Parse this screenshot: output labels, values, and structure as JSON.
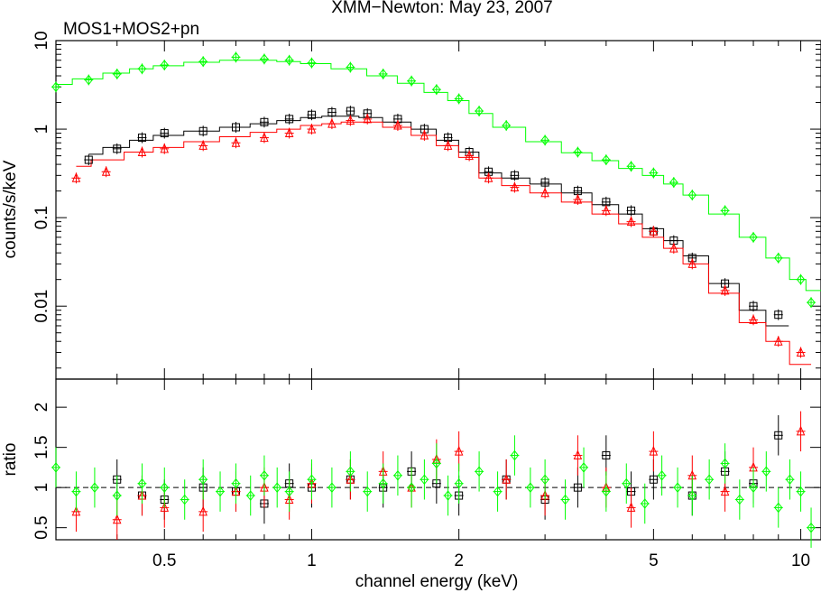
{
  "title": "XMM−Newton: May 23, 2007",
  "subtitle": "MOS1+MOS2+pn",
  "xlabel": "channel energy (keV)",
  "colors": {
    "mos1": "#000000",
    "mos2": "#ff0000",
    "pn": "#00ff00",
    "axes": "#000000"
  },
  "chart_data": [
    {
      "type": "scatter",
      "panel": "spectrum",
      "ylabel": "counts/s/keV",
      "xscale": "log",
      "yscale": "log",
      "xlim": [
        0.3,
        11
      ],
      "ylim": [
        0.0015,
        10
      ],
      "x_ticks": [
        0.5,
        1,
        2,
        5,
        10
      ],
      "x_tick_labels": [
        "0.5",
        "1",
        "2",
        "5",
        "10"
      ],
      "y_ticks": [
        0.01,
        0.1,
        1,
        10
      ],
      "y_tick_labels": [
        "0.01",
        "0.1",
        "1",
        "10"
      ],
      "grid": false,
      "series": [
        {
          "color_key": "mos1",
          "marker": "square",
          "x": [
            0.35,
            0.4,
            0.45,
            0.5,
            0.6,
            0.7,
            0.8,
            0.9,
            1.0,
            1.1,
            1.2,
            1.3,
            1.5,
            1.7,
            1.9,
            2.1,
            2.3,
            2.6,
            3.0,
            3.5,
            4.0,
            4.5,
            5.0,
            5.5,
            6.0,
            7.0,
            8.0,
            9.0
          ],
          "y": [
            0.45,
            0.6,
            0.8,
            0.9,
            0.95,
            1.05,
            1.2,
            1.3,
            1.45,
            1.55,
            1.6,
            1.5,
            1.3,
            1.0,
            0.8,
            0.55,
            0.33,
            0.3,
            0.25,
            0.2,
            0.15,
            0.12,
            0.07,
            0.055,
            0.035,
            0.018,
            0.01,
            0.008
          ],
          "model": [
            0.52,
            0.62,
            0.75,
            0.85,
            0.95,
            1.05,
            1.15,
            1.25,
            1.35,
            1.4,
            1.4,
            1.35,
            1.2,
            1.0,
            0.75,
            0.55,
            0.32,
            0.28,
            0.24,
            0.19,
            0.14,
            0.11,
            0.075,
            0.055,
            0.037,
            0.018,
            0.009,
            0.006
          ]
        },
        {
          "color_key": "mos2",
          "marker": "triangle",
          "x": [
            0.33,
            0.38,
            0.45,
            0.5,
            0.6,
            0.7,
            0.8,
            0.9,
            1.0,
            1.1,
            1.2,
            1.3,
            1.5,
            1.7,
            1.9,
            2.1,
            2.3,
            2.6,
            3.0,
            3.5,
            4.0,
            4.5,
            5.0,
            5.5,
            6.0,
            7.0,
            8.0,
            9.0,
            10.0
          ],
          "y": [
            0.28,
            0.33,
            0.55,
            0.6,
            0.65,
            0.7,
            0.8,
            0.9,
            1.0,
            1.15,
            1.25,
            1.3,
            1.1,
            0.85,
            0.65,
            0.5,
            0.28,
            0.22,
            0.19,
            0.16,
            0.12,
            0.09,
            0.07,
            0.045,
            0.03,
            0.015,
            0.007,
            0.004,
            0.003
          ],
          "model": [
            0.38,
            0.45,
            0.55,
            0.62,
            0.72,
            0.82,
            0.92,
            1.0,
            1.1,
            1.15,
            1.2,
            1.2,
            1.05,
            0.85,
            0.65,
            0.48,
            0.28,
            0.23,
            0.19,
            0.15,
            0.11,
            0.085,
            0.06,
            0.045,
            0.03,
            0.014,
            0.0065,
            0.004,
            0.0022
          ]
        },
        {
          "color_key": "pn",
          "marker": "diamond",
          "x": [
            0.3,
            0.35,
            0.4,
            0.45,
            0.5,
            0.6,
            0.7,
            0.8,
            0.9,
            1.0,
            1.2,
            1.4,
            1.6,
            1.8,
            2.0,
            2.2,
            2.5,
            3.0,
            3.5,
            4.0,
            4.5,
            5.0,
            5.5,
            6.0,
            7.0,
            8.0,
            9.0,
            10.0,
            10.5
          ],
          "y": [
            3.0,
            3.6,
            4.2,
            4.8,
            5.3,
            5.8,
            6.5,
            6.2,
            6.0,
            5.6,
            5.0,
            4.2,
            3.5,
            2.8,
            2.2,
            1.6,
            1.1,
            0.75,
            0.55,
            0.45,
            0.38,
            0.32,
            0.25,
            0.18,
            0.12,
            0.06,
            0.035,
            0.02,
            0.011
          ],
          "model": [
            3.2,
            3.7,
            4.3,
            4.8,
            5.2,
            5.7,
            6.0,
            6.0,
            5.8,
            5.5,
            4.8,
            4.0,
            3.3,
            2.6,
            2.1,
            1.5,
            1.05,
            0.72,
            0.54,
            0.44,
            0.36,
            0.3,
            0.24,
            0.18,
            0.11,
            0.06,
            0.035,
            0.02,
            0.015
          ]
        }
      ]
    },
    {
      "type": "scatter",
      "panel": "ratio",
      "ylabel": "ratio",
      "xscale": "log",
      "xlim": [
        0.3,
        11
      ],
      "ylim": [
        0.35,
        2.35
      ],
      "x_ticks": [
        0.5,
        1,
        2,
        5,
        10
      ],
      "x_tick_labels": [
        "0.5",
        "1",
        "2",
        "5",
        "10"
      ],
      "y_ticks": [
        0.5,
        1,
        1.5,
        2
      ],
      "y_tick_labels": [
        "0.5",
        "1",
        "1.5",
        "2"
      ],
      "reference_line": 1,
      "grid": false,
      "series": [
        {
          "color_key": "mos1",
          "marker": "square",
          "x": [
            0.4,
            0.45,
            0.5,
            0.6,
            0.7,
            0.8,
            0.9,
            1.0,
            1.2,
            1.4,
            1.6,
            1.8,
            2.0,
            2.5,
            3.0,
            3.5,
            4.0,
            4.5,
            5.0,
            6.0,
            7.0,
            8.0,
            9.0
          ],
          "y": [
            1.1,
            0.9,
            0.85,
            1.0,
            0.95,
            0.8,
            1.05,
            1.0,
            1.1,
            1.0,
            1.2,
            1.05,
            0.9,
            1.1,
            0.85,
            1.0,
            1.4,
            0.95,
            1.1,
            0.9,
            1.2,
            1.05,
            1.65
          ]
        },
        {
          "color_key": "mos2",
          "marker": "triangle",
          "x": [
            0.33,
            0.4,
            0.45,
            0.5,
            0.6,
            0.7,
            0.8,
            0.9,
            1.0,
            1.2,
            1.4,
            1.6,
            1.8,
            2.0,
            2.5,
            3.0,
            3.5,
            4.0,
            4.5,
            5.0,
            6.0,
            7.0,
            8.0,
            10.0
          ],
          "y": [
            0.7,
            0.6,
            0.9,
            0.75,
            0.7,
            0.95,
            1.0,
            0.85,
            1.05,
            1.1,
            1.2,
            1.0,
            1.35,
            1.45,
            1.1,
            0.9,
            1.4,
            1.0,
            0.75,
            1.45,
            1.15,
            0.95,
            1.25,
            1.7
          ]
        },
        {
          "color_key": "pn",
          "marker": "diamond",
          "x": [
            0.3,
            0.33,
            0.36,
            0.4,
            0.45,
            0.5,
            0.55,
            0.6,
            0.65,
            0.7,
            0.75,
            0.8,
            0.85,
            0.9,
            1.0,
            1.1,
            1.2,
            1.3,
            1.4,
            1.5,
            1.6,
            1.7,
            1.8,
            1.9,
            2.0,
            2.2,
            2.4,
            2.6,
            2.8,
            3.0,
            3.3,
            3.6,
            4.0,
            4.4,
            4.8,
            5.2,
            5.6,
            6.0,
            6.5,
            7.0,
            7.5,
            8.0,
            8.5,
            9.0,
            9.5,
            10.0,
            10.5
          ],
          "y": [
            1.25,
            0.95,
            1.0,
            0.9,
            1.05,
            1.0,
            0.85,
            1.1,
            0.95,
            1.05,
            0.9,
            1.15,
            1.0,
            0.95,
            1.1,
            1.0,
            1.2,
            0.95,
            1.05,
            1.15,
            1.0,
            1.1,
            1.3,
            0.9,
            1.05,
            1.2,
            0.95,
            1.4,
            1.0,
            1.1,
            0.85,
            1.25,
            0.95,
            1.05,
            0.8,
            1.15,
            1.0,
            0.9,
            1.1,
            1.3,
            0.85,
            1.0,
            1.2,
            0.75,
            1.1,
            0.95,
            0.5
          ]
        }
      ]
    }
  ]
}
